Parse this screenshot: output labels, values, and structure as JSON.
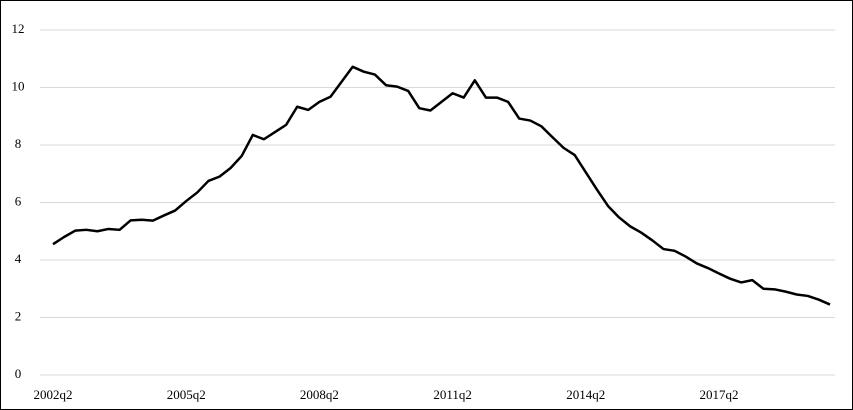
{
  "chart_data": {
    "type": "line",
    "categories": [
      "2002q2",
      null,
      null,
      null,
      null,
      null,
      null,
      null,
      null,
      null,
      null,
      null,
      "2005q2",
      null,
      null,
      null,
      null,
      null,
      null,
      null,
      null,
      null,
      null,
      null,
      "2008q2",
      null,
      null,
      null,
      null,
      null,
      null,
      null,
      null,
      null,
      null,
      null,
      "2011q2",
      null,
      null,
      null,
      null,
      null,
      null,
      null,
      null,
      null,
      null,
      null,
      "2014q2",
      null,
      null,
      null,
      null,
      null,
      null,
      null,
      null,
      null,
      null,
      null,
      "2017q2",
      null,
      null,
      null,
      null,
      null,
      null,
      null,
      null,
      null,
      null
    ],
    "series": [
      {
        "color": "#000000",
        "values": [
          4.55,
          4.8,
          5.02,
          5.05,
          5.0,
          5.08,
          5.05,
          5.38,
          5.4,
          5.37,
          5.55,
          5.72,
          6.05,
          6.35,
          6.75,
          6.9,
          7.2,
          7.62,
          8.35,
          8.2,
          8.45,
          8.7,
          9.33,
          9.22,
          9.5,
          9.68,
          10.2,
          10.72,
          10.55,
          10.45,
          10.08,
          10.03,
          9.88,
          9.28,
          9.2,
          9.5,
          9.8,
          9.65,
          10.25,
          9.65,
          9.65,
          9.5,
          8.92,
          8.85,
          8.65,
          8.27,
          7.9,
          7.65,
          7.05,
          6.45,
          5.88,
          5.48,
          5.17,
          4.95,
          4.68,
          4.38,
          4.32,
          4.12,
          3.88,
          3.72,
          3.53,
          3.35,
          3.22,
          3.3,
          3.0,
          2.98,
          2.9,
          2.8,
          2.75,
          2.62,
          2.45
        ]
      }
    ],
    "ylim": [
      0,
      12
    ],
    "yticks": [
      0,
      2,
      4,
      6,
      8,
      10,
      12
    ],
    "grid": true
  }
}
